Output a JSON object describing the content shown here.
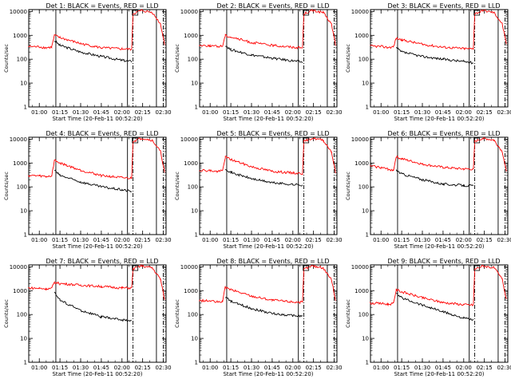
{
  "chart_data": [
    {
      "type": "line",
      "title": "Det  1: BLACK = Events, RED = LLD",
      "xlabel": "Start Time (20-Feb-11 00:52:20)",
      "ylabel": "Counts/sec",
      "x_ticks": [
        "01:00",
        "01:15",
        "01:30",
        "01:45",
        "02:00",
        "02:15",
        "02:30"
      ],
      "y_ticks": [
        "1",
        "10",
        "100",
        "1000",
        "10000"
      ],
      "y_scale": "log",
      "ylim": [
        1,
        12000
      ],
      "series": [
        {
          "name": "BLACK = Events",
          "color": "#000000",
          "x": [
            "01:11",
            "01:15",
            "01:30",
            "01:45",
            "02:00",
            "02:07"
          ],
          "y": [
            600,
            380,
            200,
            130,
            90,
            80
          ]
        },
        {
          "name": "RED = LLD",
          "color": "#ff0000",
          "x": [
            "00:52",
            "01:00",
            "01:05",
            "01:09",
            "01:11",
            "01:15",
            "01:30",
            "01:45",
            "02:00",
            "02:07",
            "02:08",
            "02:14",
            "02:22",
            "02:28",
            "02:31"
          ],
          "y": [
            340,
            330,
            300,
            320,
            1000,
            800,
            450,
            300,
            270,
            260,
            8000,
            11000,
            9000,
            3000,
            400
          ]
        }
      ]
    },
    {
      "type": "line",
      "title": "Det  2: BLACK = Events, RED = LLD",
      "xlabel": "Start Time (20-Feb-11 00:52:20)",
      "ylabel": "Counts/sec",
      "x_ticks": [
        "01:00",
        "01:15",
        "01:30",
        "01:45",
        "02:00",
        "02:15",
        "02:30"
      ],
      "y_ticks": [
        "1",
        "10",
        "100",
        "1000",
        "10000"
      ],
      "y_scale": "log",
      "ylim": [
        1,
        12000
      ],
      "series": [
        {
          "name": "BLACK = Events",
          "color": "#000000",
          "x": [
            "01:11",
            "01:15",
            "01:30",
            "01:45",
            "02:00",
            "02:07"
          ],
          "y": [
            380,
            250,
            150,
            110,
            85,
            75
          ]
        },
        {
          "name": "RED = LLD",
          "color": "#ff0000",
          "x": [
            "00:52",
            "01:00",
            "01:05",
            "01:09",
            "01:11",
            "01:15",
            "01:30",
            "01:45",
            "02:00",
            "02:07",
            "02:08",
            "02:14",
            "02:22",
            "02:28",
            "02:31"
          ],
          "y": [
            380,
            370,
            340,
            360,
            1000,
            850,
            500,
            380,
            320,
            300,
            8000,
            11000,
            9000,
            3000,
            400
          ]
        }
      ]
    },
    {
      "type": "line",
      "title": "Det  3: BLACK = Events, RED = LLD",
      "xlabel": "Start Time (20-Feb-11 00:52:20)",
      "ylabel": "Counts/sec",
      "x_ticks": [
        "01:00",
        "01:15",
        "01:30",
        "01:45",
        "02:00",
        "02:15",
        "02:30"
      ],
      "y_ticks": [
        "1",
        "10",
        "100",
        "1000",
        "10000"
      ],
      "y_scale": "log",
      "ylim": [
        1,
        12000
      ],
      "series": [
        {
          "name": "BLACK = Events",
          "color": "#000000",
          "x": [
            "01:11",
            "01:15",
            "01:30",
            "01:45",
            "02:00",
            "02:07"
          ],
          "y": [
            300,
            200,
            130,
            100,
            80,
            70
          ]
        },
        {
          "name": "RED = LLD",
          "color": "#ff0000",
          "x": [
            "00:52",
            "01:00",
            "01:05",
            "01:09",
            "01:11",
            "01:15",
            "01:30",
            "01:45",
            "02:00",
            "02:07",
            "02:08",
            "02:14",
            "02:22",
            "02:28",
            "02:31"
          ],
          "y": [
            350,
            340,
            310,
            330,
            750,
            650,
            420,
            320,
            280,
            270,
            8000,
            11000,
            9000,
            3000,
            400
          ]
        }
      ]
    },
    {
      "type": "line",
      "title": "Det  4: BLACK = Events, RED = LLD",
      "xlabel": "Start Time (20-Feb-11 00:52:20)",
      "ylabel": "Counts/sec",
      "x_ticks": [
        "01:00",
        "01:15",
        "01:30",
        "01:45",
        "02:00",
        "02:15",
        "02:30"
      ],
      "y_ticks": [
        "1",
        "10",
        "100",
        "1000",
        "10000"
      ],
      "y_scale": "log",
      "ylim": [
        1,
        12000
      ],
      "series": [
        {
          "name": "BLACK = Events",
          "color": "#000000",
          "x": [
            "01:11",
            "01:15",
            "01:30",
            "01:45",
            "02:00",
            "02:07"
          ],
          "y": [
            500,
            300,
            160,
            100,
            75,
            65
          ]
        },
        {
          "name": "RED = LLD",
          "color": "#ff0000",
          "x": [
            "00:52",
            "01:00",
            "01:05",
            "01:09",
            "01:11",
            "01:15",
            "01:30",
            "01:45",
            "02:00",
            "02:07",
            "02:08",
            "02:14",
            "02:22",
            "02:28",
            "02:31"
          ],
          "y": [
            300,
            290,
            270,
            290,
            1300,
            1000,
            500,
            300,
            240,
            230,
            8000,
            11000,
            9000,
            3000,
            400
          ]
        }
      ]
    },
    {
      "type": "line",
      "title": "Det  5: BLACK = Events, RED = LLD",
      "xlabel": "Start Time (20-Feb-11 00:52:20)",
      "ylabel": "Counts/sec",
      "x_ticks": [
        "01:00",
        "01:15",
        "01:30",
        "01:45",
        "02:00",
        "02:15",
        "02:30"
      ],
      "y_ticks": [
        "1",
        "10",
        "100",
        "1000",
        "10000"
      ],
      "y_scale": "log",
      "ylim": [
        1,
        12000
      ],
      "series": [
        {
          "name": "BLACK = Events",
          "color": "#000000",
          "x": [
            "01:11",
            "01:15",
            "01:30",
            "01:45",
            "02:00",
            "02:07"
          ],
          "y": [
            600,
            400,
            220,
            150,
            125,
            120
          ]
        },
        {
          "name": "RED = LLD",
          "color": "#ff0000",
          "x": [
            "00:52",
            "01:00",
            "01:05",
            "01:09",
            "01:11",
            "01:15",
            "01:30",
            "01:45",
            "02:00",
            "02:07",
            "02:08",
            "02:14",
            "02:22",
            "02:28",
            "02:31"
          ],
          "y": [
            500,
            480,
            440,
            470,
            1800,
            1400,
            700,
            450,
            380,
            360,
            8000,
            11000,
            9000,
            3000,
            400
          ]
        }
      ]
    },
    {
      "type": "line",
      "title": "Det  6: BLACK = Events, RED = LLD",
      "xlabel": "Start Time (20-Feb-11 00:52:20)",
      "ylabel": "Counts/sec",
      "x_ticks": [
        "01:00",
        "01:15",
        "01:30",
        "01:45",
        "02:00",
        "02:15",
        "02:30"
      ],
      "y_ticks": [
        "1",
        "10",
        "100",
        "1000",
        "10000"
      ],
      "y_scale": "log",
      "ylim": [
        1,
        12000
      ],
      "series": [
        {
          "name": "BLACK = Events",
          "color": "#000000",
          "x": [
            "01:11",
            "01:15",
            "01:30",
            "01:45",
            "02:00",
            "02:07"
          ],
          "y": [
            500,
            350,
            200,
            130,
            115,
            110
          ]
        },
        {
          "name": "RED = LLD",
          "color": "#ff0000",
          "x": [
            "00:52",
            "01:00",
            "01:05",
            "01:09",
            "01:11",
            "01:15",
            "01:30",
            "01:45",
            "02:00",
            "02:07",
            "02:08",
            "02:14",
            "02:22",
            "02:28",
            "02:31"
          ],
          "y": [
            750,
            650,
            550,
            500,
            1800,
            1500,
            900,
            650,
            560,
            550,
            8000,
            11000,
            9000,
            3000,
            400
          ]
        }
      ]
    },
    {
      "type": "line",
      "title": "Det  7: BLACK = Events, RED = LLD",
      "xlabel": "Start Time (20-Feb-11 00:52:20)",
      "ylabel": "Counts/sec",
      "x_ticks": [
        "01:00",
        "01:15",
        "01:30",
        "01:45",
        "02:00",
        "02:15",
        "02:30"
      ],
      "y_ticks": [
        "1",
        "10",
        "100",
        "1000",
        "10000"
      ],
      "y_scale": "log",
      "ylim": [
        1,
        12000
      ],
      "series": [
        {
          "name": "BLACK = Events",
          "color": "#000000",
          "x": [
            "01:11",
            "01:15",
            "01:30",
            "01:45",
            "02:00",
            "02:07"
          ],
          "y": [
            900,
            400,
            150,
            80,
            60,
            55
          ]
        },
        {
          "name": "RED = LLD",
          "color": "#ff0000",
          "x": [
            "00:52",
            "01:00",
            "01:05",
            "01:09",
            "01:11",
            "01:15",
            "01:30",
            "01:45",
            "02:00",
            "02:07",
            "02:08",
            "02:14",
            "02:22",
            "02:28",
            "02:31"
          ],
          "y": [
            1300,
            1250,
            1200,
            1250,
            2200,
            2000,
            1700,
            1500,
            1300,
            1300,
            8000,
            11000,
            9000,
            3000,
            400
          ]
        }
      ]
    },
    {
      "type": "line",
      "title": "Det  8: BLACK = Events, RED = LLD",
      "xlabel": "Start Time (20-Feb-11 00:52:20)",
      "ylabel": "Counts/sec",
      "x_ticks": [
        "01:00",
        "01:15",
        "01:30",
        "01:45",
        "02:00",
        "02:15",
        "02:30"
      ],
      "y_ticks": [
        "1",
        "10",
        "100",
        "1000",
        "10000"
      ],
      "y_scale": "log",
      "ylim": [
        1,
        12000
      ],
      "series": [
        {
          "name": "BLACK = Events",
          "color": "#000000",
          "x": [
            "01:11",
            "01:15",
            "01:30",
            "01:45",
            "02:00",
            "02:07"
          ],
          "y": [
            550,
            350,
            180,
            110,
            90,
            85
          ]
        },
        {
          "name": "RED = LLD",
          "color": "#ff0000",
          "x": [
            "00:52",
            "01:00",
            "01:05",
            "01:09",
            "01:11",
            "01:15",
            "01:30",
            "01:45",
            "02:00",
            "02:07",
            "02:08",
            "02:14",
            "02:22",
            "02:28",
            "02:31"
          ],
          "y": [
            380,
            370,
            330,
            360,
            1400,
            1100,
            600,
            400,
            340,
            320,
            8000,
            11000,
            9000,
            3000,
            400
          ]
        }
      ]
    },
    {
      "type": "line",
      "title": "Det  9: BLACK = Events, RED = LLD",
      "xlabel": "Start Time (20-Feb-11 00:52:20)",
      "ylabel": "Counts/sec",
      "x_ticks": [
        "01:00",
        "01:15",
        "01:30",
        "01:45",
        "02:00",
        "02:15",
        "02:30"
      ],
      "y_ticks": [
        "1",
        "10",
        "100",
        "1000",
        "10000"
      ],
      "y_scale": "log",
      "ylim": [
        1,
        12000
      ],
      "series": [
        {
          "name": "BLACK = Events",
          "color": "#000000",
          "x": [
            "01:11",
            "01:15",
            "01:30",
            "01:45",
            "02:00",
            "02:07"
          ],
          "y": [
            750,
            500,
            250,
            130,
            70,
            60
          ]
        },
        {
          "name": "RED = LLD",
          "color": "#ff0000",
          "x": [
            "00:52",
            "01:00",
            "01:05",
            "01:09",
            "01:11",
            "01:15",
            "01:30",
            "01:45",
            "02:00",
            "02:07",
            "02:08",
            "02:14",
            "02:22",
            "02:28",
            "02:31"
          ],
          "y": [
            300,
            290,
            270,
            290,
            1100,
            900,
            500,
            320,
            260,
            250,
            8000,
            11000,
            9000,
            3000,
            400
          ]
        }
      ]
    }
  ]
}
